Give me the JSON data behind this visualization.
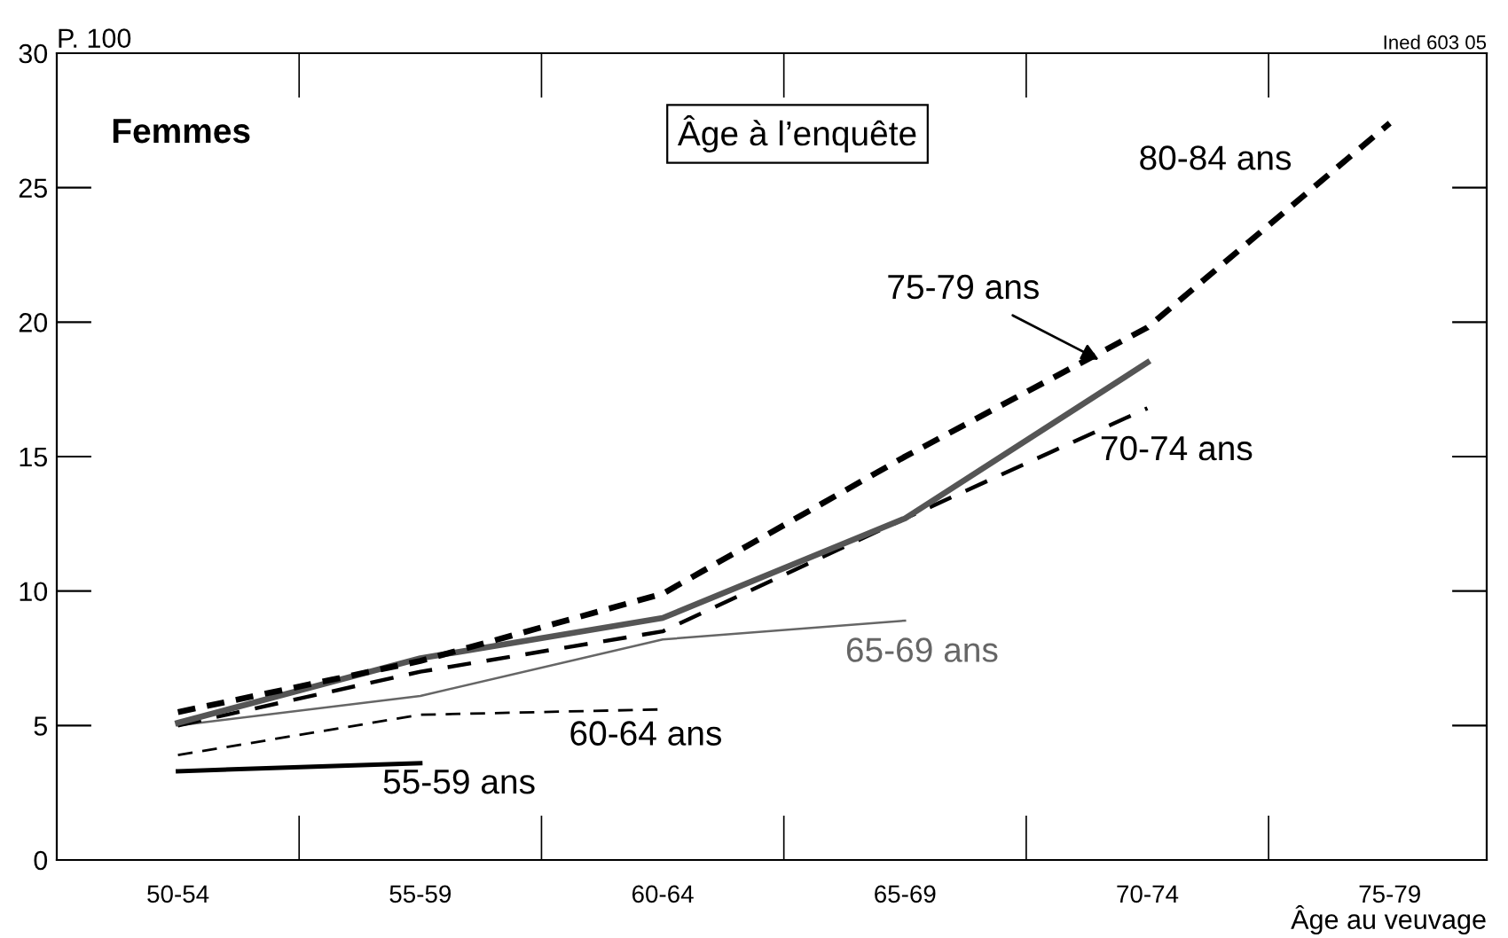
{
  "chart_data": {
    "type": "line",
    "title": "Femmes",
    "legend_title": "Âge à l’enquête",
    "ylabel": "P. 100",
    "xlabel": "Âge au veuvage",
    "categories": [
      "50-54",
      "55-59",
      "60-64",
      "65-69",
      "70-74",
      "75-79"
    ],
    "series": [
      {
        "name": "55-59 ans",
        "color": "#000000",
        "line_style": "solid",
        "values": [
          3.3,
          3.6,
          null,
          null,
          null,
          null
        ]
      },
      {
        "name": "60-64 ans",
        "color": "#000000",
        "line_style": "dashed",
        "values": [
          3.9,
          5.4,
          5.6,
          null,
          null,
          null
        ]
      },
      {
        "name": "65-69 ans",
        "color": "#666666",
        "line_style": "solid",
        "values": [
          5.0,
          6.1,
          8.2,
          8.9,
          null,
          null
        ]
      },
      {
        "name": "70-74 ans",
        "color": "#000000",
        "line_style": "dashed",
        "values": [
          5.0,
          7.0,
          8.5,
          12.7,
          16.8,
          null
        ]
      },
      {
        "name": "75-79 ans",
        "color": "#555555",
        "line_style": "solid",
        "values": [
          5.1,
          7.5,
          9.0,
          12.7,
          18.5,
          null
        ]
      },
      {
        "name": "80-84 ans",
        "color": "#000000",
        "line_style": "dotted",
        "values": [
          5.5,
          7.4,
          9.9,
          15.0,
          19.8,
          27.4
        ]
      }
    ],
    "ylim": [
      0,
      30
    ],
    "yticks": [
      0,
      5,
      10,
      15,
      20,
      25,
      30
    ],
    "grid": false,
    "legend": false,
    "marker": "none",
    "annotations": [
      "Ined 603 05"
    ]
  }
}
